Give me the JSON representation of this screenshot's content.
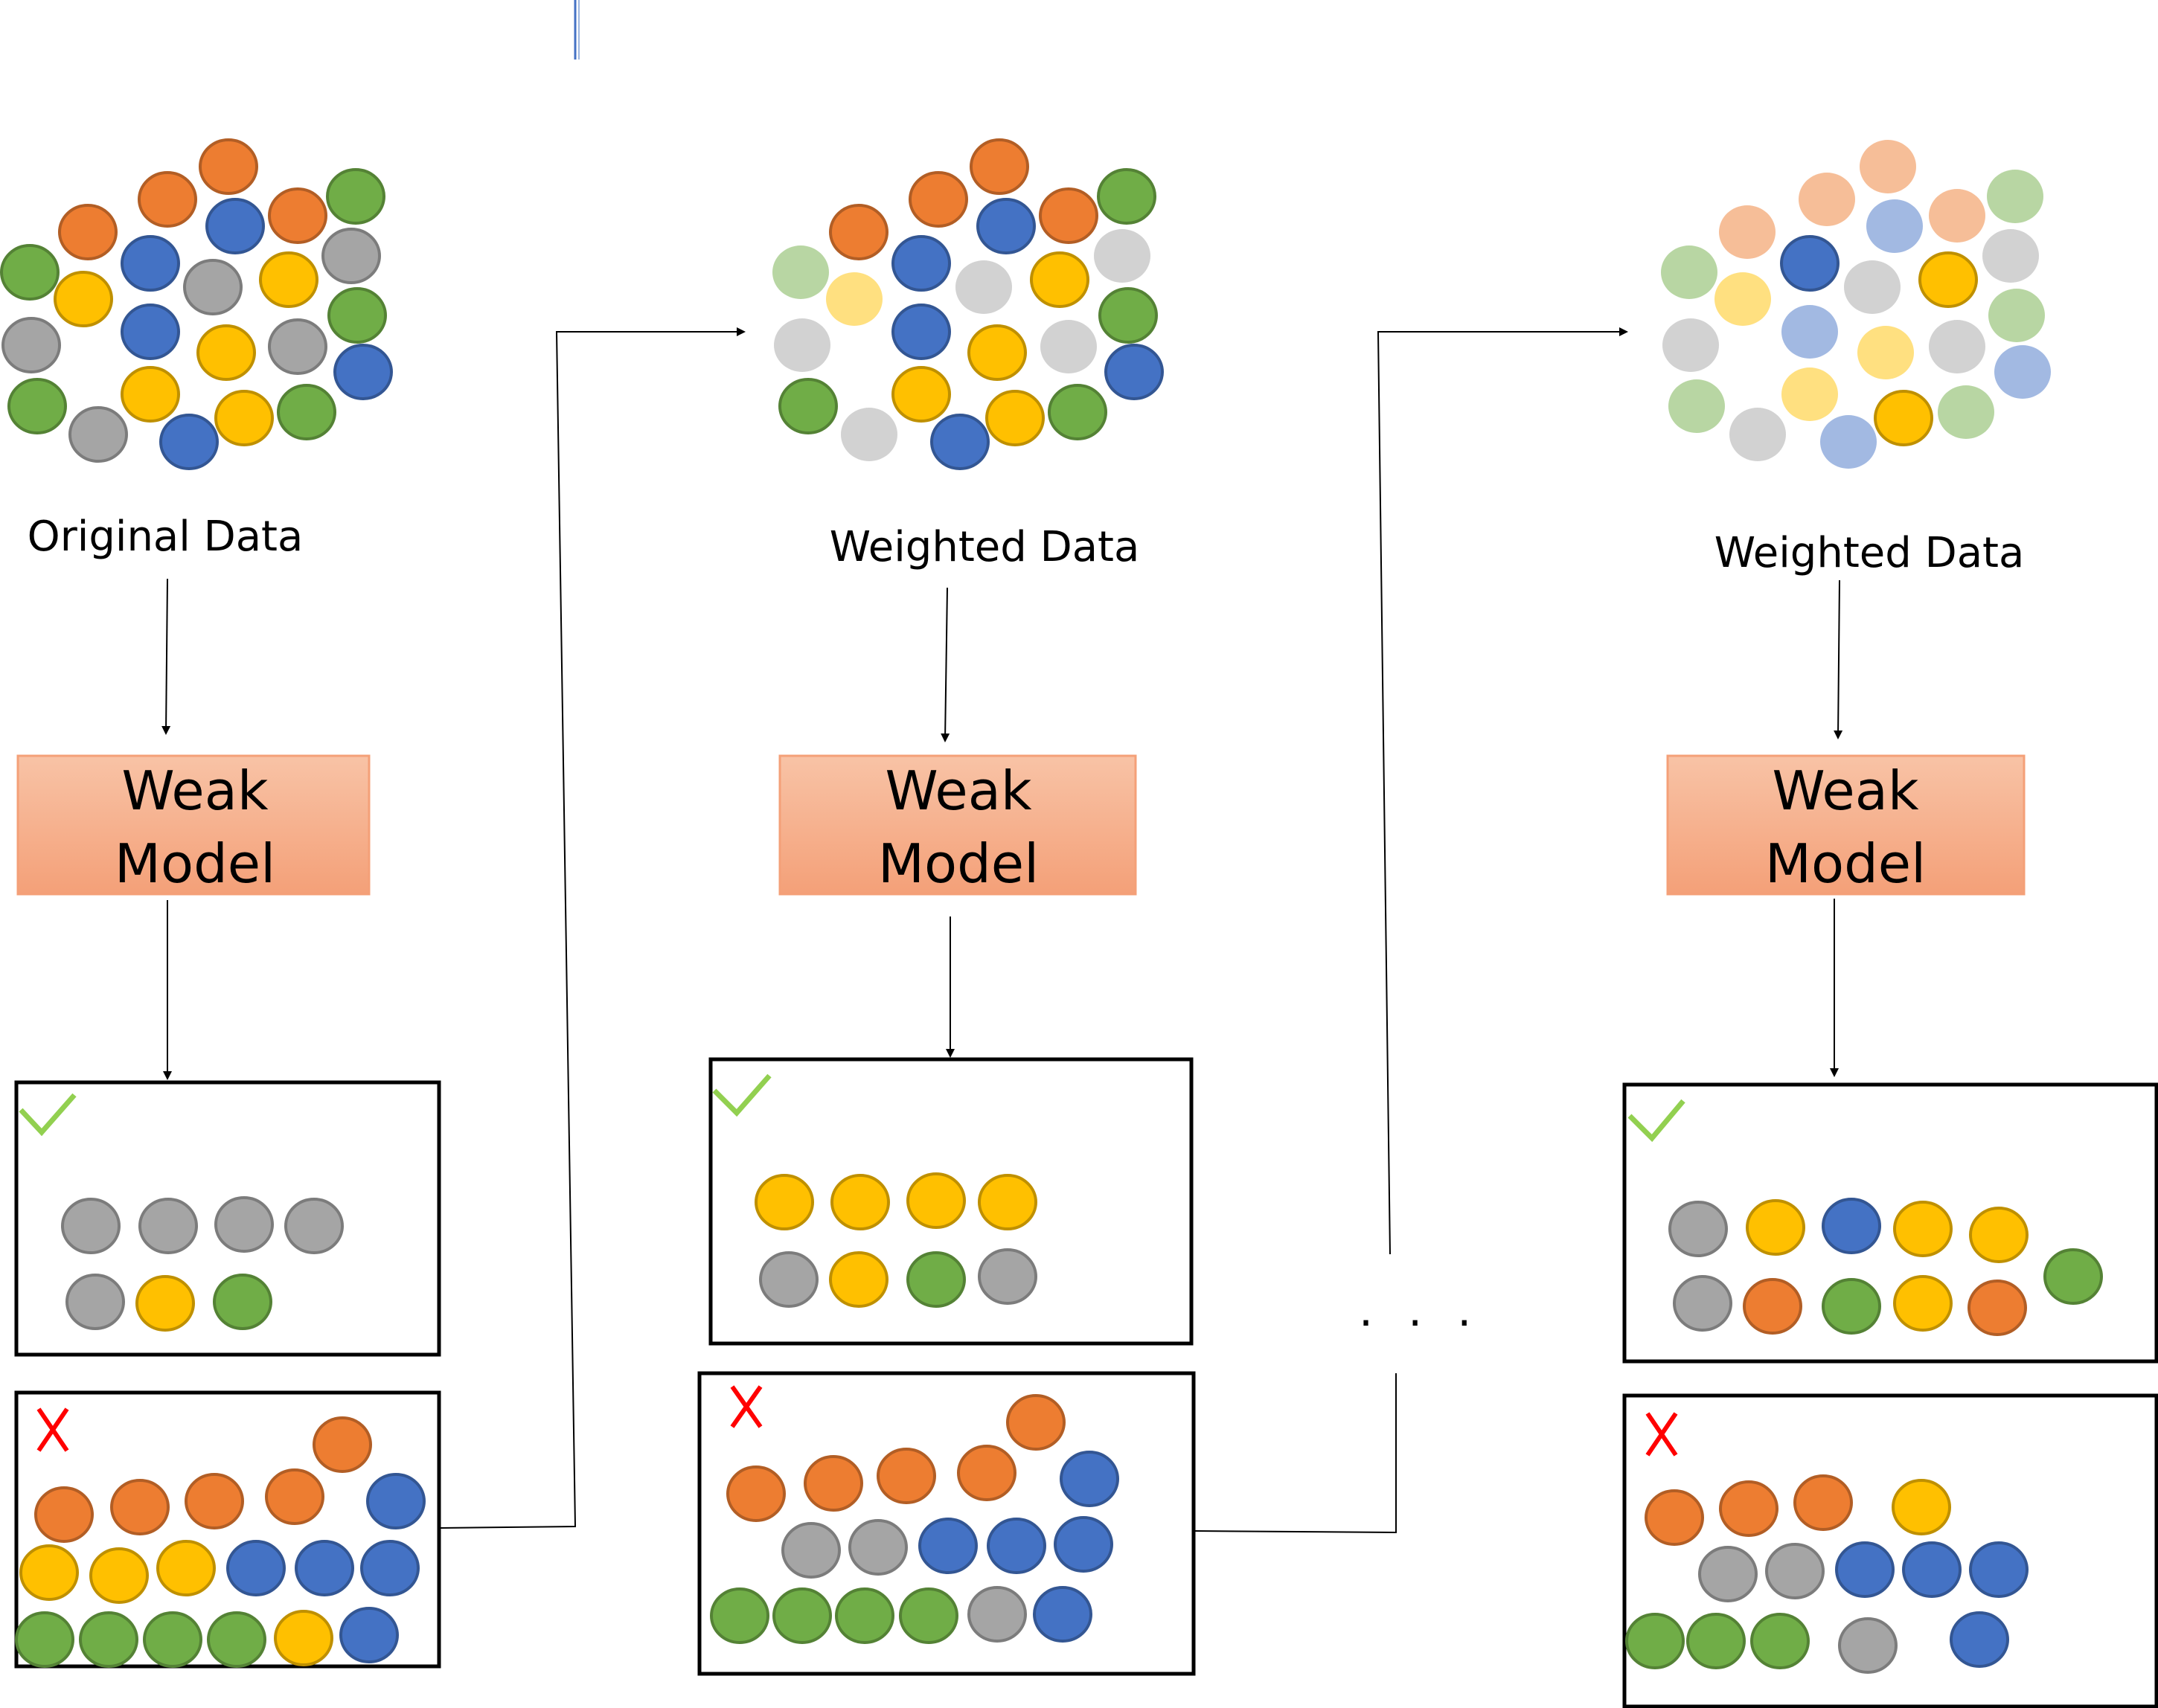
{
  "colors": {
    "orange": "#ED7D31",
    "blue": "#4472C4",
    "green": "#70AD47",
    "yellow": "#FFC000",
    "gray": "#A5A5A5",
    "check": "#92D050",
    "cross": "#FF0000",
    "model_top": "#F8C3A6",
    "model_bottom": "#F4A078",
    "model_border": "#F4A078"
  },
  "stages": [
    {
      "data_label": "Original Data",
      "model_line1": "Weak",
      "model_line2": "Model",
      "correct_icon": "checkmark-icon",
      "wrong_icon": "cross-icon"
    },
    {
      "data_label": "Weighted Data",
      "model_line1": "Weak",
      "model_line2": "Model",
      "correct_icon": "checkmark-icon",
      "wrong_icon": "cross-icon"
    },
    {
      "data_label": "Weighted Data",
      "model_line1": "Weak",
      "model_line2": "Model",
      "correct_icon": "checkmark-icon",
      "wrong_icon": "cross-icon"
    }
  ],
  "ellipsis": ". . ."
}
